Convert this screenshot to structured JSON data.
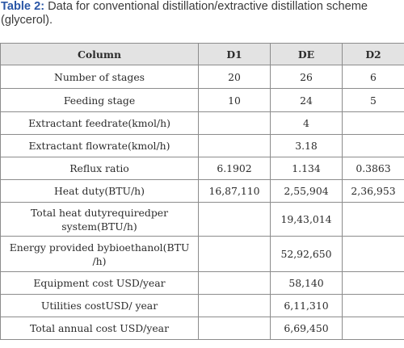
{
  "caption": {
    "label": "Table 2:",
    "text": " Data for conventional distillation/extractive distillation scheme\n(glycerol)."
  },
  "table": {
    "headers": [
      "Column",
      "D1",
      "DE",
      "D2"
    ],
    "rows": [
      [
        "Number of stages",
        "20",
        "26",
        "6"
      ],
      [
        "Feeding  stage",
        "10",
        "24",
        "5"
      ],
      [
        "Extractant  feedrate(kmol/h)",
        "",
        "4",
        ""
      ],
      [
        "Extractant  flowrate(kmol/h)",
        "",
        "3.18",
        ""
      ],
      [
        "Reflux ratio",
        "6.1902",
        "1.134",
        "0.3863"
      ],
      [
        "Heat duty(BTU/h)",
        "16,87,110",
        "2,55,904",
        "2,36,953"
      ],
      [
        "Total heat dutyrequiredper system(BTU/h)",
        "",
        "19,43,014",
        ""
      ],
      [
        "Energy provided bybioethanol(BTU /h)",
        "",
        "52,92,650",
        ""
      ],
      [
        "Equipment cost USD/year",
        "",
        "58,140",
        ""
      ],
      [
        "Utilities costUSD/ year",
        "",
        "6,11,310",
        ""
      ],
      [
        "Total annual cost USD/year",
        "",
        "6,69,450",
        ""
      ]
    ]
  }
}
